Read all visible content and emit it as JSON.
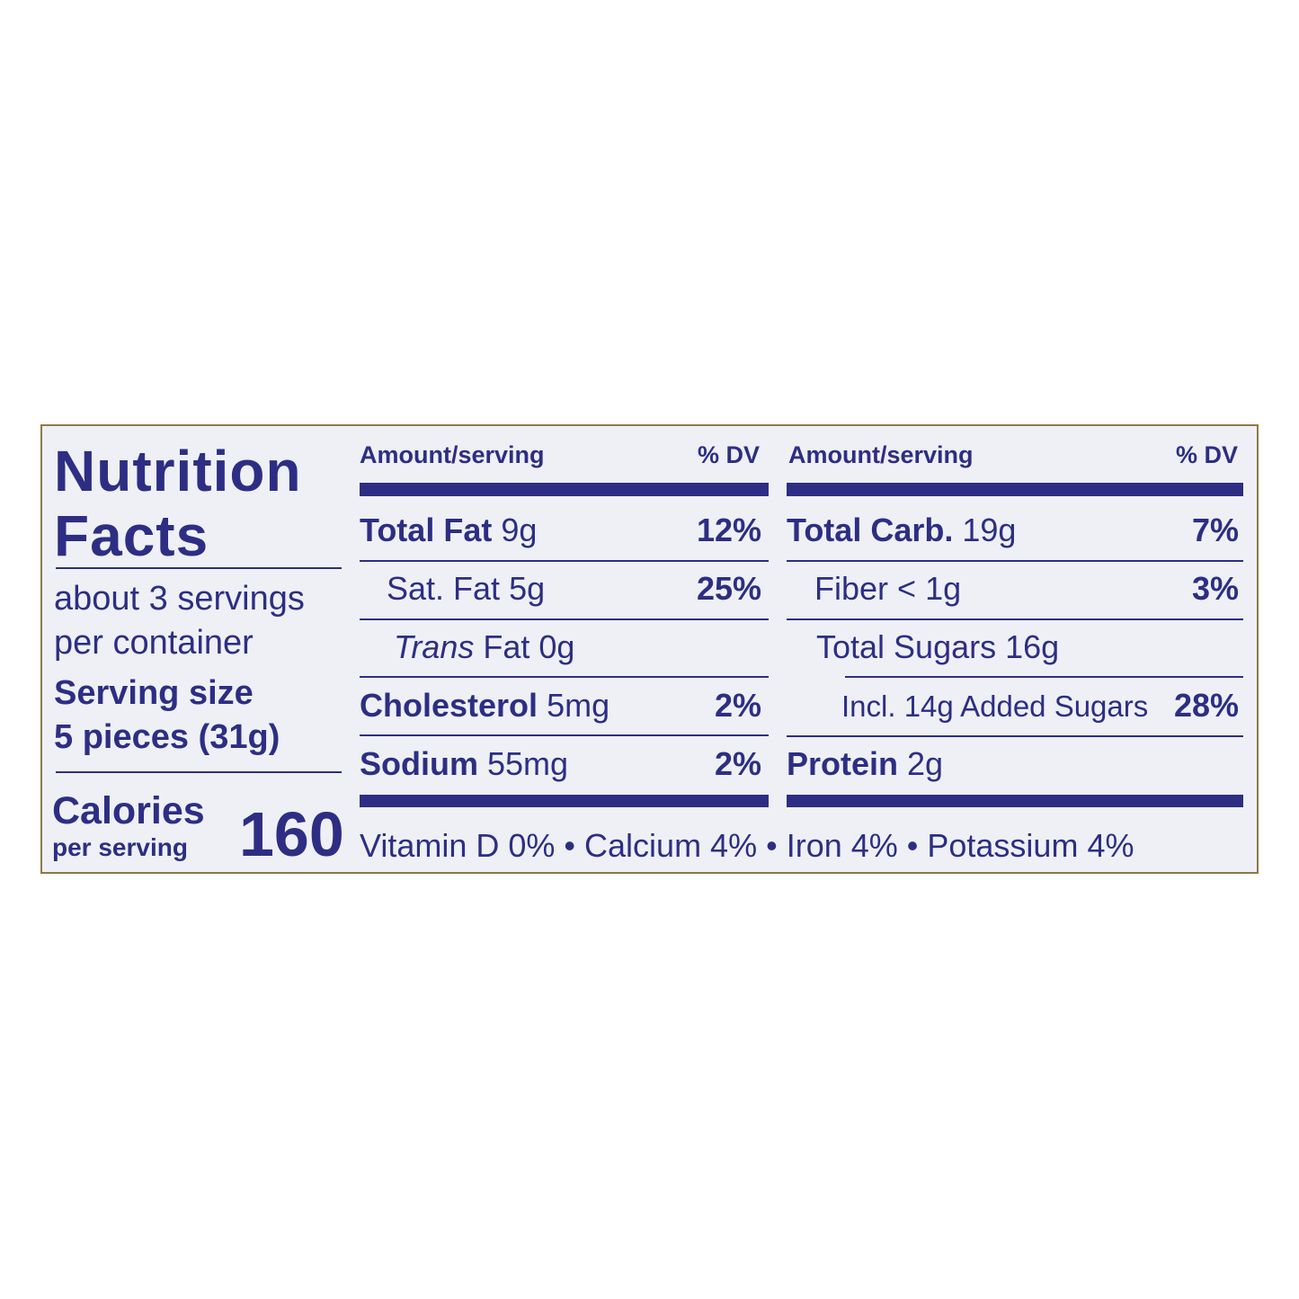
{
  "title": [
    "Nutrition",
    "Facts"
  ],
  "servings": [
    "about 3 servings",
    "per container"
  ],
  "serving_size": {
    "label": "Serving size",
    "value": "5 pieces (31g)"
  },
  "calories": {
    "label": "Calories",
    "sublabel": "per serving",
    "value": "160"
  },
  "columns": [
    {
      "header": {
        "amount": "Amount/serving",
        "dv": "% DV"
      },
      "rows": [
        {
          "name": "Total Fat",
          "amount": "9g",
          "dv": "12%"
        },
        {
          "name": "Sat. Fat",
          "amount": "5g",
          "dv": "25%"
        },
        {
          "name": "Trans",
          "amount": "Fat 0g"
        },
        {
          "name": "Cholesterol",
          "amount": "5mg",
          "dv": "2%"
        },
        {
          "name": "Sodium",
          "amount": "55mg",
          "dv": "2%"
        }
      ]
    },
    {
      "header": {
        "amount": "Amount/serving",
        "dv": "% DV"
      },
      "rows": [
        {
          "name": "Total Carb.",
          "amount": "19g",
          "dv": "7%"
        },
        {
          "name": "Fiber",
          "amount": "< 1g",
          "dv": "3%"
        },
        {
          "name": "Total Sugars",
          "amount": "16g"
        },
        {
          "name": "Incl. 14g Added Sugars",
          "dv": "28%"
        },
        {
          "name": "Protein",
          "amount": "2g"
        }
      ]
    }
  ],
  "footer": "Vitamin D 0% • Calcium 4% • Iron 4% • Potassium 4%"
}
